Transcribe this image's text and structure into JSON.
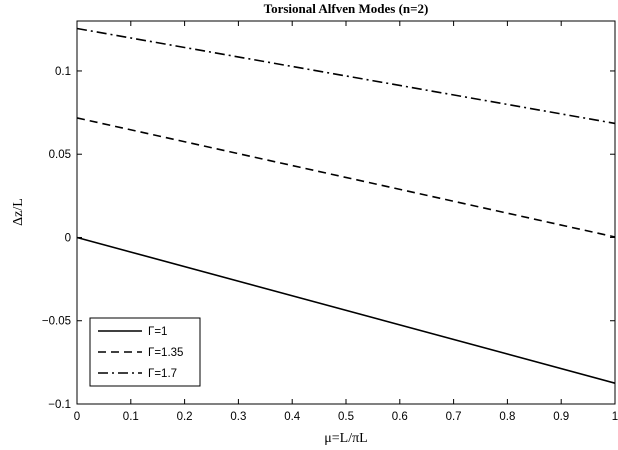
{
  "chart_data": {
    "type": "line",
    "title": "Torsional Alfven Modes (n=2)",
    "xlabel": "μ=L/πL",
    "ylabel": "Δz/L",
    "xlim": [
      0,
      1
    ],
    "ylim": [
      -0.1,
      0.13
    ],
    "xticks": [
      0,
      0.1,
      0.2,
      0.3,
      0.4,
      0.5,
      0.6,
      0.7,
      0.8,
      0.9,
      1
    ],
    "xtick_labels": [
      "0",
      "0.1",
      "0.2",
      "0.3",
      "0.4",
      "0.5",
      "0.6",
      "0.7",
      "0.8",
      "0.9",
      "1"
    ],
    "yticks": [
      -0.1,
      -0.05,
      0,
      0.05,
      0.1
    ],
    "ytick_labels": [
      "−0.1",
      "−0.05",
      "0",
      "0.05",
      "0.1"
    ],
    "grid": false,
    "legend_position": "bottom-left",
    "series": [
      {
        "name": "Γ=1",
        "style": "solid",
        "color": "#000000",
        "x": [
          0,
          1
        ],
        "y": [
          0.0,
          -0.0875
        ]
      },
      {
        "name": "Γ=1.35",
        "style": "dashed",
        "color": "#000000",
        "x": [
          0,
          1
        ],
        "y": [
          0.0718,
          0.0003
        ]
      },
      {
        "name": "Γ=1.7",
        "style": "dashdot",
        "color": "#000000",
        "x": [
          0,
          1
        ],
        "y": [
          0.1255,
          0.0685
        ]
      }
    ]
  }
}
